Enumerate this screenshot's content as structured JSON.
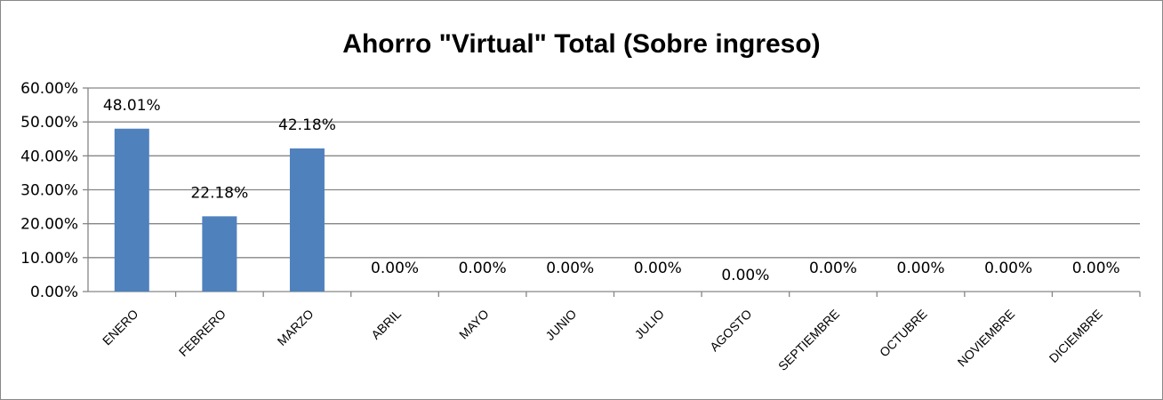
{
  "chart_data": {
    "type": "bar",
    "title": "Ahorro \"Virtual\" Total (Sobre ingreso)",
    "categories": [
      "ENERO",
      "FEBRERO",
      "MARZO",
      "ABRIL",
      "MAYO",
      "JUNIO",
      "JULIO",
      "AGOSTO",
      "SEPTIEMBRE",
      "OCTUBRE",
      "NOVIEMBRE",
      "DICIEMBRE"
    ],
    "values": [
      48.01,
      22.18,
      42.18,
      0,
      0,
      0,
      0,
      0,
      0,
      0,
      0,
      0
    ],
    "data_labels": [
      "48.01%",
      "22.18%",
      "42.18%",
      "0.00%",
      "0.00%",
      "0.00%",
      "0.00%",
      "0.00%",
      "0.00%",
      "0.00%",
      "0.00%",
      "0.00%"
    ],
    "y_ticks": [
      "0.00%",
      "10.00%",
      "20.00%",
      "30.00%",
      "40.00%",
      "50.00%",
      "60.00%"
    ],
    "ylim": [
      0,
      60
    ],
    "xlabel": "",
    "ylabel": "",
    "grid": true,
    "legend": "none",
    "bar_color": "#4f81bd",
    "grid_color": "#868686"
  }
}
